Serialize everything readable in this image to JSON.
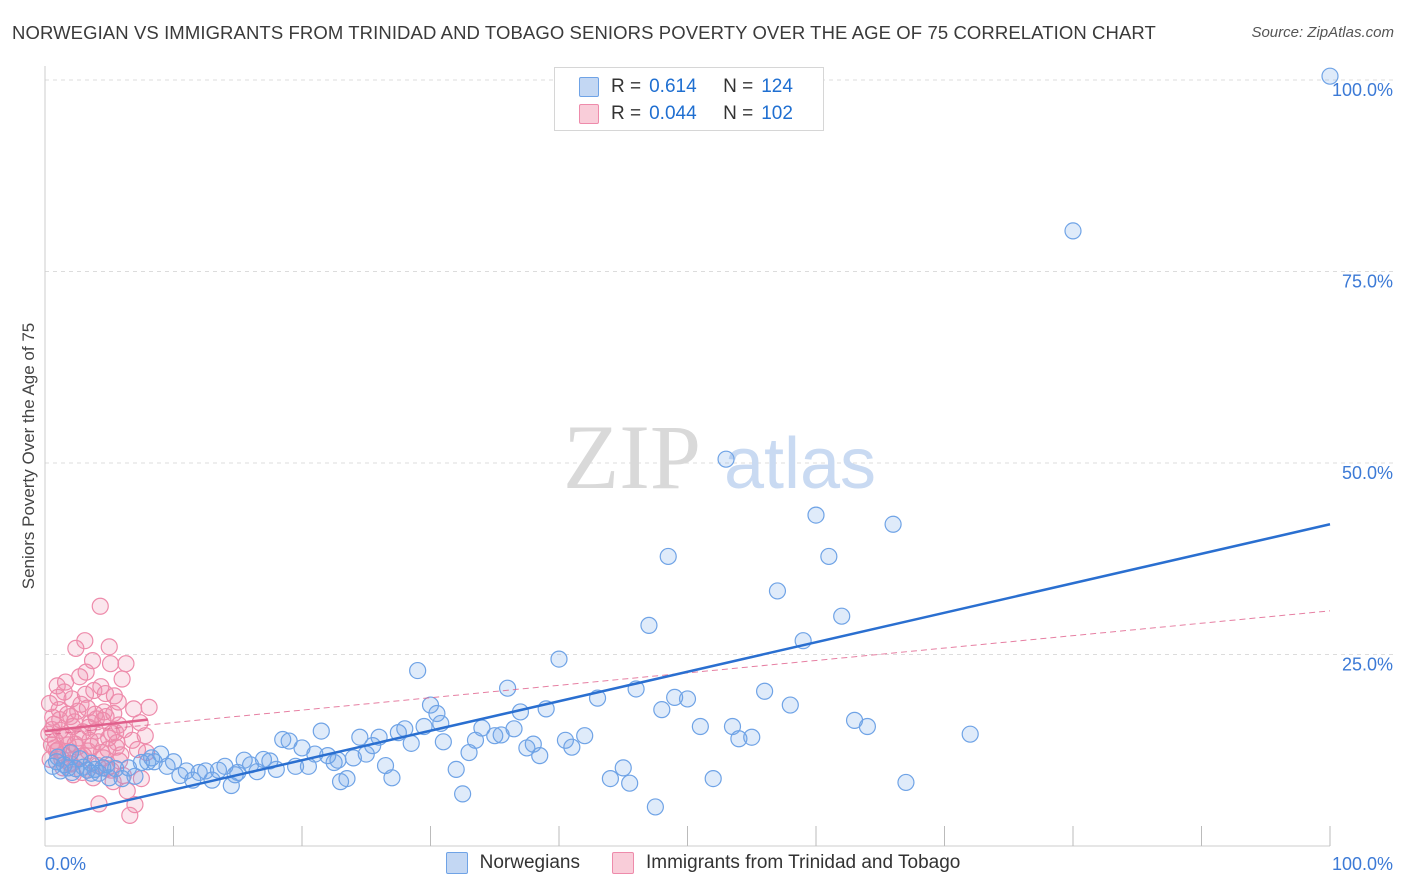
{
  "header": {
    "title": "NORWEGIAN VS IMMIGRANTS FROM TRINIDAD AND TOBAGO SENIORS POVERTY OVER THE AGE OF 75 CORRELATION CHART",
    "source": "Source: ZipAtlas.com"
  },
  "watermark": {
    "zip": "ZIP",
    "atlas": "atlas"
  },
  "legend": {
    "norwegians": {
      "r_label": "R =",
      "r_value": "0.614",
      "n_label": "N =",
      "n_value": "124"
    },
    "immigrants": {
      "r_label": "R =",
      "r_value": "0.044",
      "n_label": "N =",
      "n_value": "102"
    }
  },
  "bottom_legend": {
    "norwegians": "Norwegians",
    "immigrants": "Immigrants from Trinidad and Tobago"
  },
  "colors": {
    "blue": "#6fa3e6",
    "blue_line": "#2a6fd0",
    "pink": "#ee8bab",
    "pink_line": "#e0608c",
    "tick_text": "#3c7ad6"
  },
  "chart_data": {
    "type": "scatter",
    "title": "NORWEGIAN VS IMMIGRANTS FROM TRINIDAD AND TOBAGO SENIORS POVERTY OVER THE AGE OF 75 CORRELATION CHART",
    "xlabel": "",
    "ylabel": "Seniors Poverty Over the Age of 75",
    "xlim": [
      0,
      100
    ],
    "ylim": [
      0,
      100
    ],
    "x_tick_labels": [
      "0.0%",
      "100.0%"
    ],
    "y_ticks": [
      25,
      50,
      75,
      100
    ],
    "y_tick_labels": [
      "25.0%",
      "50.0%",
      "75.0%",
      "100.0%"
    ],
    "grid": true,
    "series": [
      {
        "name": "Norwegians",
        "r": 0.614,
        "n": 124,
        "trend": {
          "x": [
            0,
            100
          ],
          "y": [
            3.5,
            42
          ]
        },
        "points": [
          [
            0.6,
            10.4
          ],
          [
            0.9,
            11
          ],
          [
            1.2,
            9.8
          ],
          [
            1.5,
            10.6
          ],
          [
            1.8,
            10.2
          ],
          [
            2.1,
            9.6
          ],
          [
            2.4,
            10.1
          ],
          [
            2.7,
            11.4
          ],
          [
            3,
            10.3
          ],
          [
            3.3,
            9.9
          ],
          [
            3.6,
            10.8
          ],
          [
            3.9,
            10
          ],
          [
            4.2,
            9.5
          ],
          [
            4.5,
            10.2
          ],
          [
            5,
            8.9
          ],
          [
            5.5,
            10.1
          ],
          [
            6,
            8.8
          ],
          [
            6.5,
            10.2
          ],
          [
            7,
            9.1
          ],
          [
            7.5,
            10.9
          ],
          [
            8,
            11
          ],
          [
            8.5,
            11
          ],
          [
            9,
            12
          ],
          [
            9.5,
            10.4
          ],
          [
            10,
            11
          ],
          [
            10.5,
            9.2
          ],
          [
            11,
            9.8
          ],
          [
            11.5,
            8.6
          ],
          [
            12,
            9.6
          ],
          [
            12.5,
            9.8
          ],
          [
            13,
            8.6
          ],
          [
            13.5,
            9.9
          ],
          [
            14,
            10.4
          ],
          [
            14.5,
            7.9
          ],
          [
            15,
            9.6
          ],
          [
            15.5,
            11.2
          ],
          [
            16,
            10.6
          ],
          [
            16.5,
            9.7
          ],
          [
            17,
            11.3
          ],
          [
            17.5,
            11.1
          ],
          [
            18,
            10
          ],
          [
            18.5,
            13.9
          ],
          [
            19,
            13.7
          ],
          [
            19.5,
            10.4
          ],
          [
            20,
            12.8
          ],
          [
            20.5,
            10.4
          ],
          [
            21,
            12
          ],
          [
            21.5,
            15
          ],
          [
            22,
            11.8
          ],
          [
            22.5,
            10.9
          ],
          [
            23,
            8.4
          ],
          [
            23.5,
            8.8
          ],
          [
            24,
            11.5
          ],
          [
            24.5,
            14.2
          ],
          [
            25,
            12
          ],
          [
            25.5,
            13.1
          ],
          [
            26,
            14.2
          ],
          [
            26.5,
            10.5
          ],
          [
            27,
            8.9
          ],
          [
            27.5,
            14.8
          ],
          [
            28,
            15.3
          ],
          [
            28.5,
            13.4
          ],
          [
            29,
            22.9
          ],
          [
            29.5,
            15.6
          ],
          [
            30,
            18.4
          ],
          [
            30.5,
            17.3
          ],
          [
            31,
            13.6
          ],
          [
            32,
            10
          ],
          [
            32.5,
            6.8
          ],
          [
            33,
            12.2
          ],
          [
            33.5,
            13.8
          ],
          [
            34,
            15.4
          ],
          [
            35,
            14.4
          ],
          [
            35.5,
            14.5
          ],
          [
            36,
            20.6
          ],
          [
            36.5,
            15.3
          ],
          [
            37,
            17.5
          ],
          [
            37.5,
            12.8
          ],
          [
            38,
            13.3
          ],
          [
            38.5,
            11.8
          ],
          [
            39,
            17.9
          ],
          [
            40,
            24.4
          ],
          [
            40.5,
            13.8
          ],
          [
            41,
            12.9
          ],
          [
            42,
            14.4
          ],
          [
            43,
            19.3
          ],
          [
            44,
            8.8
          ],
          [
            45,
            10.2
          ],
          [
            45.5,
            8.2
          ],
          [
            46,
            20.5
          ],
          [
            47,
            28.8
          ],
          [
            47.5,
            5.1
          ],
          [
            48,
            17.8
          ],
          [
            48.5,
            37.8
          ],
          [
            49,
            19.4
          ],
          [
            50,
            19.2
          ],
          [
            51,
            15.6
          ],
          [
            52,
            8.8
          ],
          [
            53,
            50.5
          ],
          [
            53.5,
            15.6
          ],
          [
            54,
            14
          ],
          [
            55,
            14.2
          ],
          [
            56,
            20.2
          ],
          [
            57,
            33.3
          ],
          [
            58,
            18.4
          ],
          [
            59,
            26.8
          ],
          [
            60,
            43.2
          ],
          [
            61,
            37.8
          ],
          [
            62,
            30
          ],
          [
            63,
            16.4
          ],
          [
            64,
            15.6
          ],
          [
            66,
            42
          ],
          [
            67,
            8.3
          ],
          [
            72,
            14.6
          ],
          [
            80,
            80.3
          ],
          [
            100,
            100.5
          ],
          [
            1,
            11.6
          ],
          [
            2,
            12.2
          ],
          [
            3.6,
            9.5
          ],
          [
            4.8,
            10.6
          ],
          [
            8.3,
            11.5
          ],
          [
            14.8,
            9.3
          ],
          [
            22.8,
            11.2
          ],
          [
            30.8,
            16
          ]
        ]
      },
      {
        "name": "Immigrants from Trinidad and Tobago",
        "r": 0.044,
        "n": 102,
        "trend": {
          "x": [
            0,
            8
          ],
          "y": [
            15,
            16.5
          ]
        },
        "trend_extended": {
          "x": [
            0,
            100
          ],
          "y": [
            14.5,
            30.7
          ]
        },
        "points": [
          [
            0.3,
            14.6
          ],
          [
            0.5,
            13.2
          ],
          [
            0.7,
            15.9
          ],
          [
            0.9,
            12.4
          ],
          [
            1.1,
            17.8
          ],
          [
            1.3,
            11.4
          ],
          [
            1.5,
            20.1
          ],
          [
            1.7,
            14.4
          ],
          [
            1.9,
            10.8
          ],
          [
            2.1,
            19.2
          ],
          [
            2.3,
            16.2
          ],
          [
            2.5,
            12.9
          ],
          [
            2.7,
            22.1
          ],
          [
            2.9,
            9.6
          ],
          [
            3.1,
            26.8
          ],
          [
            3.3,
            18
          ],
          [
            3.5,
            13.8
          ],
          [
            3.7,
            24.2
          ],
          [
            3.9,
            17.2
          ],
          [
            4.1,
            10.5
          ],
          [
            4.3,
            31.3
          ],
          [
            4.5,
            16.4
          ],
          [
            4.7,
            19.9
          ],
          [
            4.9,
            12.6
          ],
          [
            5.1,
            23.8
          ],
          [
            5.3,
            8.4
          ],
          [
            5.5,
            14.8
          ],
          [
            5.7,
            18.8
          ],
          [
            5.9,
            11.9
          ],
          [
            6.1,
            9.2
          ],
          [
            6.3,
            23.8
          ],
          [
            6.6,
            4
          ],
          [
            6.9,
            17.9
          ],
          [
            7.2,
            12.6
          ],
          [
            7.5,
            8.8
          ],
          [
            7.8,
            14.4
          ],
          [
            8.1,
            18.1
          ],
          [
            0.4,
            11.3
          ],
          [
            0.6,
            16.8
          ],
          [
            0.8,
            13.7
          ],
          [
            1,
            19.4
          ],
          [
            1.2,
            15.1
          ],
          [
            1.4,
            10.2
          ],
          [
            1.6,
            21.4
          ],
          [
            1.8,
            13.2
          ],
          [
            2,
            16.9
          ],
          [
            2.2,
            9.3
          ],
          [
            2.4,
            25.8
          ],
          [
            2.6,
            14.1
          ],
          [
            2.8,
            18.5
          ],
          [
            3,
            11.8
          ],
          [
            3.2,
            22.7
          ],
          [
            3.4,
            15.5
          ],
          [
            3.6,
            13
          ],
          [
            3.8,
            20.3
          ],
          [
            4,
            16.6
          ],
          [
            4.2,
            5.5
          ],
          [
            4.4,
            12.2
          ],
          [
            4.6,
            17.5
          ],
          [
            4.8,
            10.1
          ],
          [
            5,
            26
          ],
          [
            5.2,
            14.7
          ],
          [
            5.4,
            19.6
          ],
          [
            5.6,
            13.5
          ],
          [
            5.8,
            11.1
          ],
          [
            6,
            21.8
          ],
          [
            6.2,
            15.2
          ],
          [
            6.4,
            7.2
          ],
          [
            6.8,
            13.8
          ],
          [
            7,
            5.4
          ],
          [
            7.4,
            16.1
          ],
          [
            7.9,
            12.2
          ],
          [
            0.35,
            18.6
          ],
          [
            0.55,
            15.2
          ],
          [
            0.75,
            12.8
          ],
          [
            0.95,
            20.9
          ],
          [
            1.15,
            16.5
          ],
          [
            1.35,
            11.9
          ],
          [
            1.55,
            14.2
          ],
          [
            1.75,
            17.2
          ],
          [
            1.95,
            12.1
          ],
          [
            2.15,
            15.6
          ],
          [
            2.35,
            13.3
          ],
          [
            2.55,
            17.6
          ],
          [
            2.75,
            11.7
          ],
          [
            2.95,
            14.9
          ],
          [
            3.15,
            19.8
          ],
          [
            3.35,
            12.4
          ],
          [
            3.55,
            16.1
          ],
          [
            3.75,
            8.9
          ],
          [
            3.95,
            15
          ],
          [
            4.15,
            13.6
          ],
          [
            4.35,
            20.8
          ],
          [
            4.55,
            11.5
          ],
          [
            4.75,
            16.9
          ],
          [
            4.95,
            14.1
          ],
          [
            5.15,
            9.9
          ],
          [
            5.35,
            17.3
          ],
          [
            5.55,
            12.9
          ],
          [
            5.75,
            15.8
          ],
          [
            1.05,
            12.6
          ],
          [
            2.05,
            10.7
          ]
        ]
      }
    ]
  }
}
